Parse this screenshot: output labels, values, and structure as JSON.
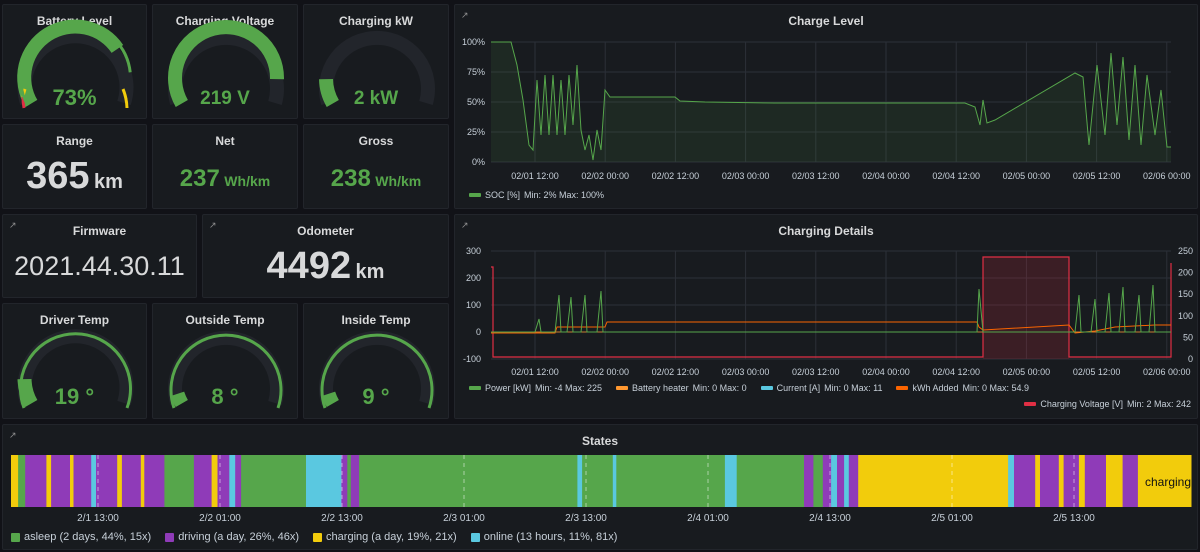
{
  "colors": {
    "green": "#56a64b",
    "purple": "#8f3bb8",
    "yellow": "#f2cc0c",
    "cyan": "#5ac8e0",
    "orange": "#ff9830",
    "red": "#e02f44",
    "dark_orange": "#fa6400",
    "gauge_bg": "#22252b"
  },
  "gauges": {
    "battery": {
      "title": "Battery Level",
      "value": "73%",
      "fraction": 0.73
    },
    "voltage": {
      "title": "Charging Voltage",
      "value": "219 V",
      "fraction": 0.88
    },
    "kw": {
      "title": "Charging kW",
      "value": "2 kW",
      "fraction": 0.12
    },
    "driver_temp": {
      "title": "Driver Temp",
      "value": "19 °",
      "fraction": 0.12
    },
    "outside_temp": {
      "title": "Outside Temp",
      "value": "8 °",
      "fraction": 0.05
    },
    "inside_temp": {
      "title": "Inside Temp",
      "value": "9 °",
      "fraction": 0.05
    }
  },
  "stats": {
    "range": {
      "title": "Range",
      "value": "365",
      "unit": "km"
    },
    "net": {
      "title": "Net",
      "value": "237",
      "unit": "Wh/km"
    },
    "gross": {
      "title": "Gross",
      "value": "238",
      "unit": "Wh/km"
    },
    "firmware": {
      "title": "Firmware",
      "value": "2021.44.30.11"
    },
    "odometer": {
      "title": "Odometer",
      "value": "4492",
      "unit": "km"
    }
  },
  "charge_level": {
    "title": "Charge Level",
    "x_ticks": [
      "02/01 12:00",
      "02/02 00:00",
      "02/02 12:00",
      "02/03 00:00",
      "02/03 12:00",
      "02/04 00:00",
      "02/04 12:00",
      "02/05 00:00",
      "02/05 12:00",
      "02/06 00:00"
    ],
    "y_ticks": [
      "100%",
      "75%",
      "50%",
      "25%",
      "0%"
    ],
    "legend": {
      "name": "SOC [%]",
      "stats": "Min: 2%  Max: 100%"
    }
  },
  "charging_details": {
    "title": "Charging Details",
    "x_ticks": [
      "02/01 12:00",
      "02/02 00:00",
      "02/02 12:00",
      "02/03 00:00",
      "02/03 12:00",
      "02/04 00:00",
      "02/04 12:00",
      "02/05 00:00",
      "02/05 12:00",
      "02/06 00:00"
    ],
    "y_left_ticks": [
      "300",
      "200",
      "100",
      "0",
      "-100"
    ],
    "y_right_ticks": [
      "250",
      "200",
      "150",
      "100",
      "50",
      "0"
    ],
    "legend": [
      {
        "name": "Power [kW]",
        "stats": "Min: -4  Max: 225"
      },
      {
        "name": "Battery heater",
        "stats": "Min: 0  Max: 0"
      },
      {
        "name": "Current [A]",
        "stats": "Min: 0  Max: 11"
      },
      {
        "name": "kWh Added",
        "stats": "Min: 0  Max: 54.9"
      }
    ],
    "legend_right": {
      "name": "Charging Voltage [V]",
      "stats": "Min: 2  Max: 242"
    }
  },
  "states": {
    "title": "States",
    "x_ticks": [
      "2/1 13:00",
      "2/2 01:00",
      "2/2 13:00",
      "2/3 01:00",
      "2/3 13:00",
      "2/4 01:00",
      "2/4 13:00",
      "2/5 01:00",
      "2/5 13:00"
    ],
    "end_label": "charging",
    "legend": [
      {
        "label": "asleep (2 days, 44%, 15x)"
      },
      {
        "label": "driving (a day, 26%, 46x)"
      },
      {
        "label": "charging (a day, 19%, 21x)"
      },
      {
        "label": "online (13 hours, 11%, 81x)"
      }
    ]
  }
}
